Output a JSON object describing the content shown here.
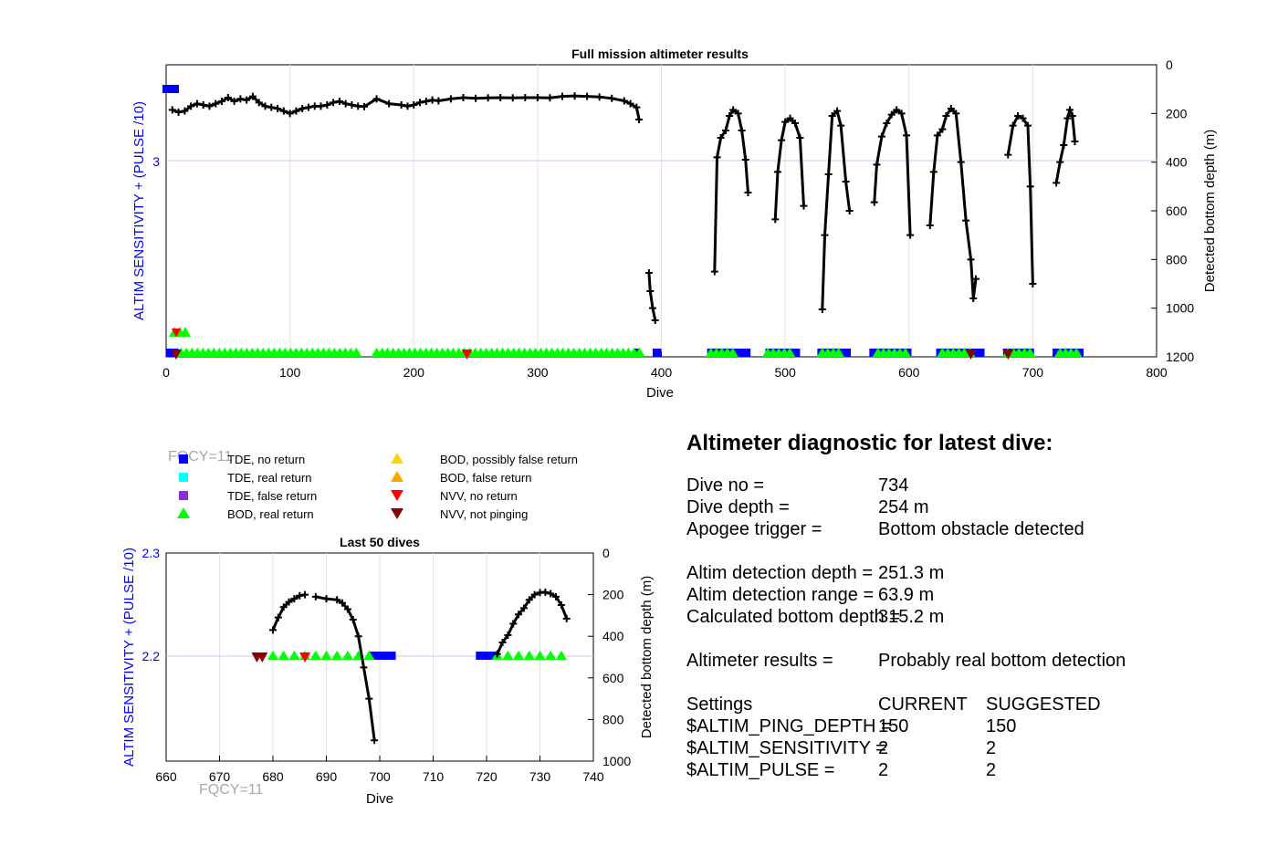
{
  "top_chart": {
    "title": "Full mission altimeter results",
    "xlabel": "Dive",
    "ylabel_left": "ALTIM SENSITIVITY + (PULSE /10)",
    "ylabel_right": "Detected bottom depth (m)",
    "xlim": [
      0,
      800
    ],
    "xticks": [
      "0",
      "100",
      "200",
      "300",
      "400",
      "500",
      "600",
      "700",
      "800"
    ],
    "yticks_right": [
      "0",
      "200",
      "400",
      "600",
      "800",
      "1000",
      "1200"
    ],
    "ytick_left": "3"
  },
  "bottom_chart": {
    "title": "Last 50 dives",
    "xlabel": "Dive",
    "ylabel_left": "ALTIM SENSITIVITY + (PULSE /10)",
    "ylabel_right": "Detected bottom depth (m)",
    "xlim": [
      660,
      740
    ],
    "xticks": [
      "660",
      "670",
      "680",
      "690",
      "700",
      "710",
      "720",
      "730",
      "740"
    ],
    "yticks_left": [
      "2.3",
      "2.2"
    ],
    "yticks_right": [
      "0",
      "200",
      "400",
      "600",
      "800",
      "1000"
    ]
  },
  "fqcy_labels": [
    "FQCY=11",
    "FQCY=11"
  ],
  "legend": [
    {
      "label": "TDE, no return",
      "marker": "square",
      "color": "#0000ff"
    },
    {
      "label": "TDE, real return",
      "marker": "square",
      "color": "#00ffff"
    },
    {
      "label": "TDE, false return",
      "marker": "square",
      "color": "#8a2be2"
    },
    {
      "label": "BOD, real return",
      "marker": "triangle-up",
      "color": "#00ff00"
    },
    {
      "label": "BOD, possibly false return",
      "marker": "triangle-up",
      "color": "#ffd700"
    },
    {
      "label": "BOD, false return",
      "marker": "triangle-up",
      "color": "#ffa500"
    },
    {
      "label": "NVV, no return",
      "marker": "triangle-down",
      "color": "#ff0000"
    },
    {
      "label": "NVV, not pinging",
      "marker": "triangle-down",
      "color": "#8b0000"
    }
  ],
  "diagnostic": {
    "title": "Altimeter diagnostic for latest dive:",
    "dive_no_label": "Dive no =",
    "dive_no": "734",
    "dive_depth_label": "Dive depth =",
    "dive_depth": "254 m",
    "apogee_label": "Apogee trigger =",
    "apogee": "Bottom obstacle detected",
    "det_depth_label": "Altim detection depth =",
    "det_depth": "251.3 m",
    "det_range_label": "Altim detection range =",
    "det_range": "63.9 m",
    "calc_depth_label": "Calculated bottom depth =",
    "calc_depth": "315.2 m",
    "results_label": "Altimeter results =",
    "results": "Probably real bottom detection",
    "settings_label": "Settings",
    "current_label": "CURRENT",
    "suggested_label": "SUGGESTED",
    "ping_depth_label": "$ALTIM_PING_DEPTH =",
    "ping_depth_current": "150",
    "ping_depth_suggested": "150",
    "sensitivity_label": "$ALTIM_SENSITIVITY =",
    "sensitivity_current": "2",
    "sensitivity_suggested": "2",
    "pulse_label": "$ALTIM_PULSE =",
    "pulse_current": "2",
    "pulse_suggested": "2"
  },
  "chart_data": [
    {
      "type": "line",
      "title": "Full mission altimeter results",
      "xlabel": "Dive",
      "ylabel": "Detected bottom depth (m)",
      "xlim": [
        0,
        800
      ],
      "ylim_right": [
        0,
        1200
      ],
      "y_reversed": true,
      "grid": true,
      "depth_segments": [
        [
          [
            5,
            185
          ],
          [
            10,
            195
          ],
          [
            15,
            190
          ],
          [
            20,
            170
          ],
          [
            25,
            160
          ],
          [
            30,
            165
          ],
          [
            35,
            170
          ],
          [
            40,
            160
          ],
          [
            45,
            150
          ],
          [
            50,
            135
          ],
          [
            55,
            150
          ],
          [
            60,
            140
          ],
          [
            65,
            145
          ],
          [
            70,
            130
          ],
          [
            75,
            155
          ],
          [
            80,
            170
          ],
          [
            85,
            175
          ],
          [
            90,
            180
          ],
          [
            95,
            190
          ],
          [
            100,
            200
          ],
          [
            105,
            190
          ],
          [
            110,
            180
          ],
          [
            115,
            175
          ],
          [
            120,
            170
          ],
          [
            125,
            170
          ],
          [
            130,
            165
          ],
          [
            135,
            155
          ],
          [
            140,
            150
          ],
          [
            145,
            160
          ],
          [
            150,
            165
          ],
          [
            155,
            170
          ],
          [
            160,
            172
          ],
          [
            170,
            140
          ],
          [
            180,
            160
          ],
          [
            190,
            165
          ],
          [
            195,
            170
          ],
          [
            200,
            165
          ],
          [
            205,
            155
          ],
          [
            210,
            150
          ],
          [
            215,
            145
          ],
          [
            220,
            148
          ],
          [
            230,
            140
          ],
          [
            240,
            135
          ],
          [
            250,
            138
          ],
          [
            260,
            136
          ],
          [
            270,
            135
          ],
          [
            280,
            136
          ],
          [
            290,
            135
          ],
          [
            300,
            135
          ],
          [
            310,
            136
          ],
          [
            320,
            130
          ],
          [
            330,
            128
          ],
          [
            340,
            130
          ],
          [
            350,
            132
          ],
          [
            360,
            138
          ],
          [
            370,
            148
          ],
          [
            375,
            160
          ],
          [
            380,
            175
          ],
          [
            382,
            225
          ]
        ],
        [
          [
            390,
            855
          ],
          [
            391,
            930
          ],
          [
            393,
            1000
          ],
          [
            395,
            1050
          ]
        ],
        [
          [
            443,
            850
          ],
          [
            445,
            380
          ],
          [
            448,
            300
          ],
          [
            452,
            270
          ],
          [
            455,
            210
          ],
          [
            458,
            185
          ],
          [
            462,
            200
          ],
          [
            465,
            270
          ],
          [
            468,
            390
          ],
          [
            470,
            525
          ]
        ],
        [
          [
            492,
            635
          ],
          [
            494,
            440
          ],
          [
            497,
            310
          ],
          [
            500,
            235
          ],
          [
            504,
            220
          ],
          [
            508,
            240
          ],
          [
            512,
            300
          ],
          [
            515,
            580
          ]
        ],
        [
          [
            530,
            1005
          ],
          [
            532,
            700
          ],
          [
            535,
            450
          ],
          [
            538,
            210
          ],
          [
            542,
            190
          ],
          [
            545,
            250
          ],
          [
            549,
            480
          ],
          [
            552,
            600
          ]
        ],
        [
          [
            572,
            565
          ],
          [
            574,
            410
          ],
          [
            578,
            295
          ],
          [
            582,
            240
          ],
          [
            586,
            205
          ],
          [
            590,
            185
          ],
          [
            594,
            200
          ],
          [
            598,
            290
          ],
          [
            601,
            700
          ]
        ],
        [
          [
            617,
            660
          ],
          [
            620,
            440
          ],
          [
            623,
            290
          ],
          [
            627,
            265
          ],
          [
            630,
            210
          ],
          [
            634,
            180
          ],
          [
            638,
            200
          ],
          [
            642,
            400
          ],
          [
            646,
            640
          ],
          [
            650,
            800
          ],
          [
            652,
            960
          ],
          [
            654,
            880
          ]
        ],
        [
          [
            680,
            370
          ],
          [
            684,
            250
          ],
          [
            688,
            210
          ],
          [
            692,
            220
          ],
          [
            696,
            250
          ],
          [
            698,
            500
          ],
          [
            700,
            900
          ]
        ],
        [
          [
            719,
            485
          ],
          [
            722,
            400
          ],
          [
            725,
            330
          ],
          [
            728,
            220
          ],
          [
            730,
            185
          ],
          [
            732,
            210
          ],
          [
            734,
            315
          ]
        ]
      ],
      "tde_no_return_x_ranges": [
        [
          0,
          10
        ],
        [
          378,
          382
        ],
        [
          393,
          400
        ],
        [
          437,
          472
        ],
        [
          484,
          512
        ],
        [
          526,
          553
        ],
        [
          568,
          602
        ],
        [
          622,
          661
        ],
        [
          676,
          701
        ],
        [
          716,
          741
        ]
      ],
      "bod_real_return_x_ranges": [
        [
          12,
          155
        ],
        [
          170,
          385
        ],
        [
          440,
          462
        ],
        [
          486,
          505
        ],
        [
          530,
          545
        ],
        [
          575,
          598
        ],
        [
          627,
          650
        ],
        [
          680,
          700
        ],
        [
          722,
          736
        ]
      ],
      "nvv_x": [
        8,
        243,
        650,
        680
      ]
    },
    {
      "type": "line",
      "title": "Last 50 dives",
      "xlabel": "Dive",
      "ylabel": "Detected bottom depth (m)",
      "xlim": [
        660,
        740
      ],
      "ylim_left": [
        2.1,
        2.3
      ],
      "ylim_right": [
        0,
        1000
      ],
      "y_reversed": true,
      "grid": true,
      "depth_segments": [
        [
          [
            680,
            370
          ],
          [
            681,
            310
          ],
          [
            682,
            260
          ],
          [
            683,
            235
          ],
          [
            684,
            220
          ],
          [
            685,
            205
          ],
          [
            686,
            200
          ]
        ],
        [
          [
            688,
            210
          ],
          [
            690,
            220
          ],
          [
            692,
            225
          ],
          [
            693,
            240
          ],
          [
            694,
            270
          ],
          [
            695,
            320
          ],
          [
            696,
            400
          ],
          [
            697,
            550
          ],
          [
            698,
            700
          ],
          [
            699,
            900
          ]
        ],
        [
          [
            722,
            485
          ],
          [
            723,
            430
          ],
          [
            724,
            395
          ],
          [
            725,
            340
          ],
          [
            726,
            295
          ],
          [
            727,
            265
          ],
          [
            728,
            225
          ],
          [
            729,
            200
          ],
          [
            730,
            190
          ],
          [
            731,
            188
          ],
          [
            732,
            195
          ],
          [
            733,
            210
          ],
          [
            734,
            250
          ],
          [
            735,
            315
          ]
        ]
      ],
      "tde_no_return_x_ranges": [
        [
          698,
          703
        ],
        [
          718,
          722
        ]
      ],
      "bod_real_return_x": [
        680,
        682,
        684,
        686,
        688,
        690,
        692,
        694,
        696,
        698,
        722,
        724,
        726,
        728,
        730,
        732,
        734
      ],
      "nvv_x": [
        677,
        678,
        686
      ]
    }
  ]
}
